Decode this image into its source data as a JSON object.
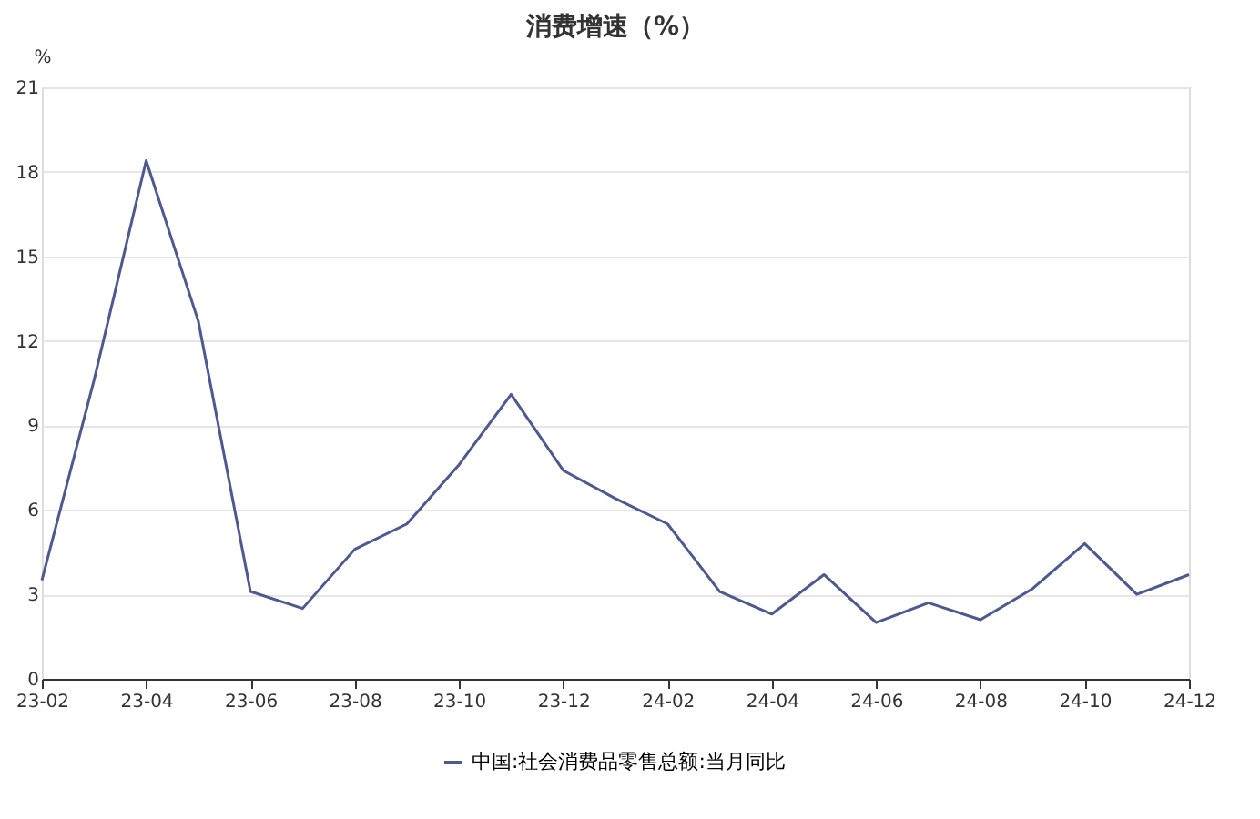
{
  "chart_data": {
    "type": "line",
    "title": "消费增速（%）",
    "ylabel": "%",
    "categories": [
      "23-02",
      null,
      "23-04",
      null,
      "23-06",
      null,
      "23-08",
      null,
      "23-10",
      null,
      "23-12",
      null,
      "24-02",
      null,
      "24-04",
      null,
      "24-06",
      null,
      "24-08",
      null,
      "24-10",
      null,
      "24-12"
    ],
    "series": [
      {
        "name": "中国:社会消费品零售总额:当月同比",
        "color": "#4e5a8f",
        "values": [
          3.5,
          10.6,
          18.4,
          12.7,
          3.1,
          2.5,
          4.6,
          5.5,
          7.6,
          10.1,
          7.4,
          6.4,
          5.5,
          3.1,
          2.3,
          3.7,
          2.0,
          2.7,
          2.1,
          3.2,
          4.8,
          3.0,
          3.7
        ]
      }
    ],
    "ylim": [
      0,
      21
    ],
    "yticks": [
      0,
      3,
      6,
      9,
      12,
      15,
      18,
      21
    ],
    "grid": "y",
    "legend": "bottom",
    "marker": "none",
    "line_style": "solid"
  }
}
